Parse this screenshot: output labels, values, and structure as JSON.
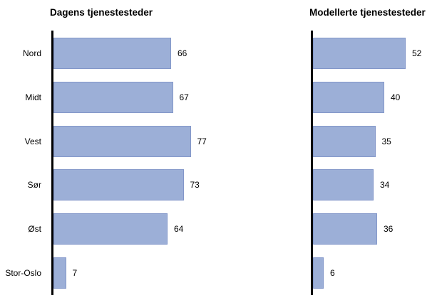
{
  "page": {
    "background_color": "#ffffff",
    "text_color": "#000000"
  },
  "chart_data": [
    {
      "type": "bar",
      "orientation": "horizontal",
      "title": "Dagens tjenestesteder",
      "categories": [
        "Nord",
        "Midt",
        "Vest",
        "Sør",
        "Øst",
        "Stor-Oslo"
      ],
      "values": [
        66,
        67,
        77,
        73,
        64,
        7
      ],
      "value_labels": [
        "66",
        "67",
        "77",
        "73",
        "64",
        "7"
      ],
      "xlim": [
        0,
        80
      ],
      "show_category_labels": true,
      "grid": false,
      "legend": "none",
      "bar_color": "#9cafd7",
      "bar_border_color": "#8397c9",
      "axis_color": "#000000"
    },
    {
      "type": "bar",
      "orientation": "horizontal",
      "title": "Modellerte tjenestesteder",
      "categories": [
        "Nord",
        "Midt",
        "Vest",
        "Sør",
        "Øst",
        "Stor-Oslo"
      ],
      "values": [
        52,
        40,
        35,
        34,
        36,
        6
      ],
      "value_labels": [
        "52",
        "40",
        "35",
        "34",
        "36",
        "6"
      ],
      "xlim": [
        0,
        80
      ],
      "show_category_labels": false,
      "grid": false,
      "legend": "none",
      "bar_color": "#9cafd7",
      "bar_border_color": "#8397c9",
      "axis_color": "#000000"
    }
  ]
}
